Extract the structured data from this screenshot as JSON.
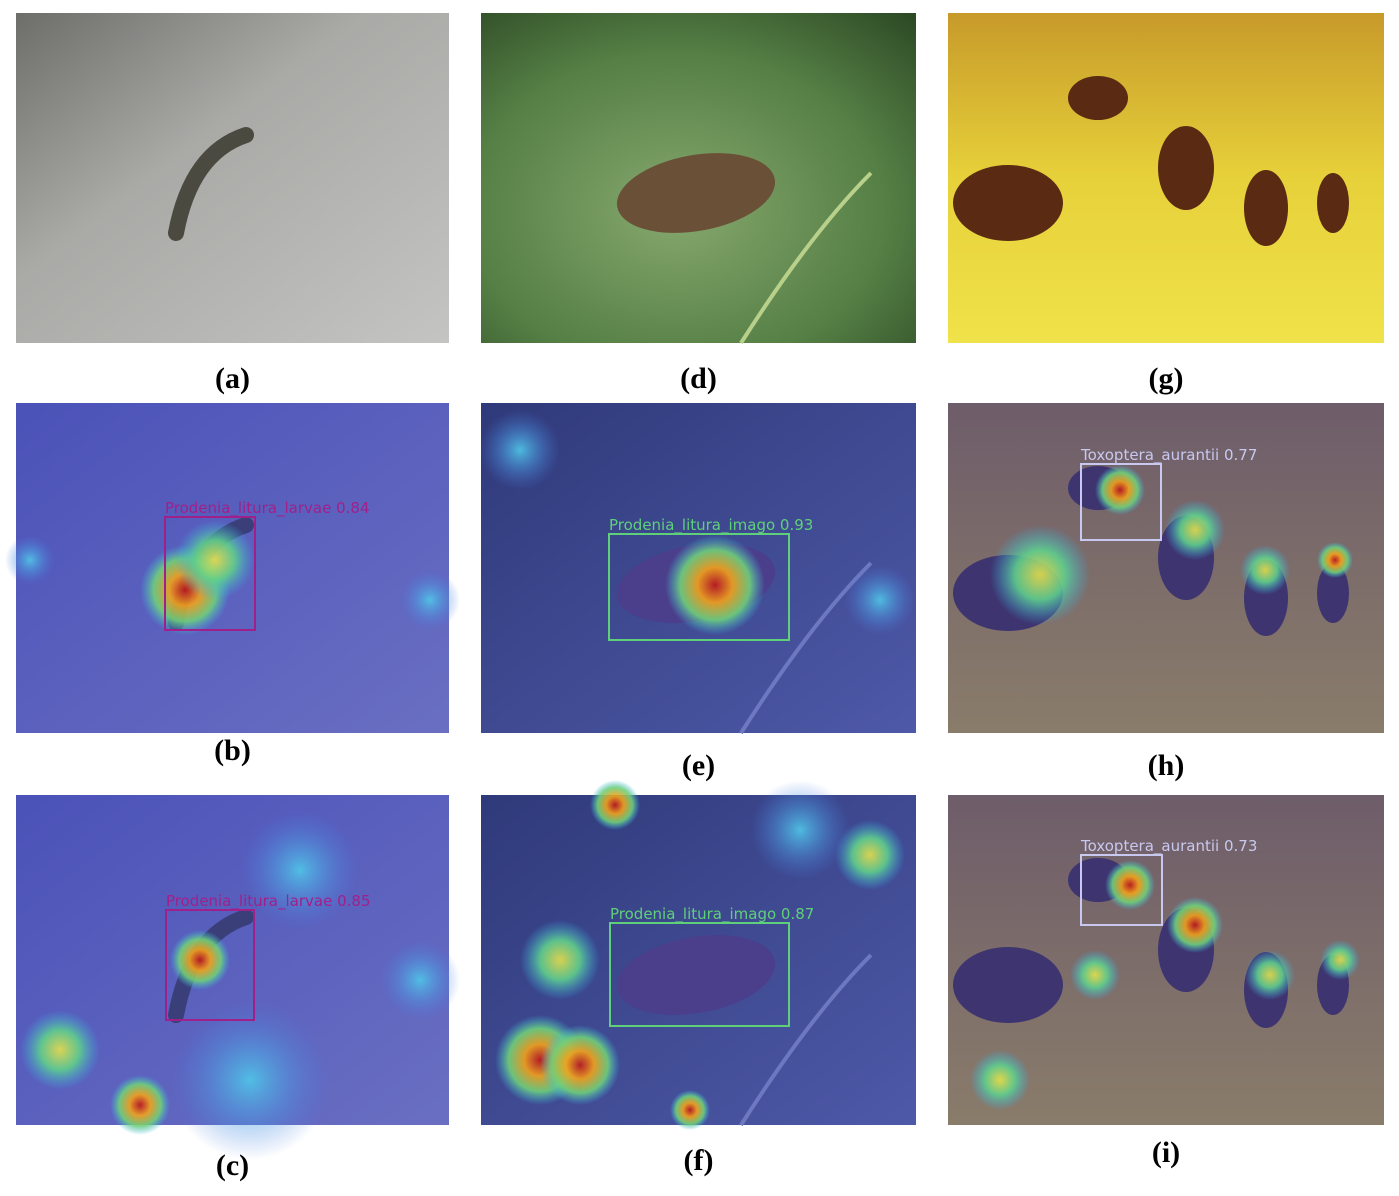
{
  "panels": [
    {
      "caption": "(a)"
    },
    {
      "caption": "(b)",
      "detection": "Prodenia_litura_larvae 0.84"
    },
    {
      "caption": "(c)",
      "detection": "Prodenia_litura_larvae 0.85"
    },
    {
      "caption": "(d)"
    },
    {
      "caption": "(e)",
      "detection": "Prodenia_litura_imago 0.93"
    },
    {
      "caption": "(f)",
      "detection": "Prodenia_litura_imago 0.87"
    },
    {
      "caption": "(g)"
    },
    {
      "caption": "(h)",
      "detection": "Toxoptera_aurantii 0.77"
    },
    {
      "caption": "(i)",
      "detection": "Toxoptera_aurantii 0.73"
    }
  ]
}
